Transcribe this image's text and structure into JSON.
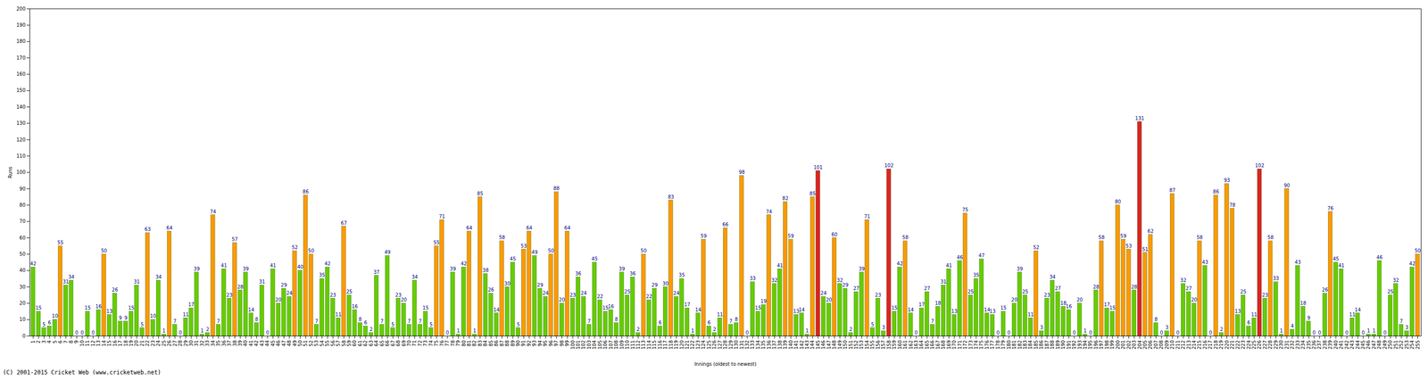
{
  "chart_data": {
    "type": "bar",
    "x_label": "Innings (oldest to newest)",
    "y_label": "Runs",
    "caption": "(C) 2001-2015 Cricket Web (www.cricketweb.net)",
    "categories": [
      "1",
      "2",
      "3",
      "4",
      "5",
      "6",
      "7",
      "8",
      "9",
      "10",
      "11",
      "12",
      "13",
      "14",
      "15",
      "16",
      "17",
      "18",
      "19",
      "20",
      "21",
      "22",
      "23",
      "24",
      "25",
      "26",
      "27",
      "28",
      "29",
      "30",
      "31",
      "32",
      "33",
      "34",
      "35",
      "36",
      "37",
      "38",
      "39",
      "40",
      "41",
      "42",
      "43",
      "44",
      "45",
      "46",
      "47",
      "48",
      "49",
      "50",
      "51",
      "52",
      "53",
      "54",
      "55",
      "56",
      "57",
      "58",
      "59",
      "60",
      "61",
      "62",
      "63",
      "64",
      "65",
      "66",
      "67",
      "68",
      "69",
      "70",
      "71",
      "72",
      "73",
      "74",
      "75",
      "76",
      "77",
      "78",
      "79",
      "80",
      "81",
      "82",
      "83",
      "84",
      "85",
      "86",
      "87",
      "88",
      "89",
      "90",
      "91",
      "92",
      "93",
      "94",
      "95",
      "96",
      "97",
      "98",
      "99",
      "100",
      "101",
      "102",
      "103",
      "104",
      "105",
      "106",
      "107",
      "108",
      "109",
      "110",
      "111",
      "112",
      "113",
      "114",
      "115",
      "116",
      "117",
      "118",
      "119",
      "120",
      "121",
      "122",
      "123",
      "124",
      "125",
      "126",
      "127",
      "128",
      "129",
      "130",
      "131",
      "132",
      "133",
      "134",
      "135",
      "136",
      "137",
      "138",
      "139",
      "140",
      "141",
      "142",
      "143",
      "144",
      "145",
      "146",
      "147",
      "148",
      "149",
      "150",
      "151",
      "152",
      "153",
      "154",
      "155",
      "156",
      "157",
      "158",
      "159",
      "160",
      "161",
      "162",
      "163",
      "164",
      "165",
      "166",
      "167",
      "168",
      "169",
      "170",
      "171",
      "172",
      "173",
      "174",
      "175",
      "176",
      "177",
      "178",
      "179",
      "180",
      "181",
      "182",
      "183",
      "184",
      "185",
      "186",
      "187",
      "188",
      "189",
      "190",
      "191",
      "192",
      "193",
      "194",
      "195",
      "196",
      "197",
      "198",
      "199",
      "200",
      "201",
      "202",
      "203",
      "204",
      "205",
      "206",
      "207",
      "208",
      "209",
      "210",
      "211",
      "212",
      "213",
      "214",
      "215",
      "216",
      "217",
      "218",
      "219",
      "220",
      "221",
      "222",
      "223",
      "224",
      "225",
      "226",
      "227",
      "228",
      "229",
      "230",
      "231",
      "232",
      "233",
      "234",
      "235",
      "236",
      "237",
      "238",
      "239",
      "240",
      "241",
      "242",
      "243",
      "244",
      "245",
      "246",
      "247",
      "248",
      "249",
      "250",
      "251",
      "252",
      "253",
      "254",
      "255"
    ],
    "values": [
      42,
      15,
      5,
      6,
      10,
      55,
      31,
      34,
      0,
      0,
      15,
      0,
      16,
      50,
      13,
      26,
      9,
      9,
      15,
      31,
      5,
      63,
      10,
      34,
      1,
      64,
      7,
      0,
      11,
      17,
      39,
      1,
      2,
      74,
      7,
      41,
      23,
      57,
      28,
      39,
      14,
      8,
      31,
      0,
      41,
      20,
      29,
      24,
      52,
      40,
      86,
      50,
      7,
      35,
      42,
      23,
      11,
      67,
      25,
      16,
      8,
      6,
      2,
      37,
      7,
      49,
      5,
      23,
      20,
      7,
      34,
      7,
      15,
      5,
      55,
      71,
      0,
      39,
      1,
      42,
      64,
      1,
      85,
      38,
      26,
      14,
      58,
      30,
      45,
      5,
      53,
      64,
      49,
      29,
      24,
      50,
      88,
      20,
      64,
      23,
      36,
      24,
      7,
      45,
      22,
      15,
      16,
      8,
      39,
      25,
      36,
      2,
      50,
      22,
      29,
      6,
      30,
      83,
      24,
      35,
      17,
      1,
      14,
      59,
      6,
      2,
      11,
      66,
      7,
      8,
      98,
      0,
      33,
      15,
      19,
      74,
      32,
      41,
      82,
      59,
      13,
      14,
      1,
      85,
      101,
      24,
      20,
      60,
      32,
      29,
      2,
      27,
      39,
      71,
      5,
      23,
      3,
      102,
      15,
      42,
      58,
      14,
      0,
      17,
      27,
      7,
      18,
      31,
      41,
      13,
      46,
      75,
      25,
      35,
      47,
      14,
      13,
      0,
      15,
      0,
      20,
      39,
      25,
      11,
      52,
      3,
      23,
      34,
      27,
      18,
      16,
      0,
      20,
      1,
      0,
      28,
      58,
      17,
      15,
      80,
      59,
      53,
      28,
      131,
      51,
      62,
      8,
      0,
      3,
      87,
      0,
      32,
      27,
      20,
      58,
      43,
      0,
      86,
      2,
      93,
      78,
      13,
      25,
      6,
      11,
      102,
      23,
      58,
      33,
      1,
      90,
      4,
      43,
      18,
      9,
      0,
      0,
      26,
      76,
      45,
      41,
      0,
      11,
      14,
      0,
      1,
      1,
      46,
      0,
      25,
      32,
      7,
      3,
      42,
      50
    ],
    "colors": [
      "#66cc00",
      "#66cc00",
      "#66cc00",
      "#66cc00",
      "#66cc00",
      "#ff9900",
      "#66cc00",
      "#66cc00",
      "#66cc00",
      "#66cc00",
      "#66cc00",
      "#66cc00",
      "#66cc00",
      "#ff9900",
      "#66cc00",
      "#66cc00",
      "#66cc00",
      "#66cc00",
      "#66cc00",
      "#66cc00",
      "#66cc00",
      "#ff9900",
      "#66cc00",
      "#66cc00",
      "#66cc00",
      "#ff9900",
      "#66cc00",
      "#66cc00",
      "#66cc00",
      "#66cc00",
      "#66cc00",
      "#66cc00",
      "#66cc00",
      "#ff9900",
      "#66cc00",
      "#66cc00",
      "#66cc00",
      "#ff9900",
      "#66cc00",
      "#66cc00",
      "#66cc00",
      "#66cc00",
      "#66cc00",
      "#66cc00",
      "#66cc00",
      "#66cc00",
      "#66cc00",
      "#66cc00",
      "#ff9900",
      "#66cc00",
      "#ff9900",
      "#ff9900",
      "#66cc00",
      "#66cc00",
      "#66cc00",
      "#66cc00",
      "#66cc00",
      "#ff9900",
      "#66cc00",
      "#66cc00",
      "#66cc00",
      "#66cc00",
      "#66cc00",
      "#66cc00",
      "#66cc00",
      "#66cc00",
      "#66cc00",
      "#66cc00",
      "#66cc00",
      "#66cc00",
      "#66cc00",
      "#66cc00",
      "#66cc00",
      "#66cc00",
      "#ff9900",
      "#ff9900",
      "#66cc00",
      "#66cc00",
      "#66cc00",
      "#66cc00",
      "#ff9900",
      "#66cc00",
      "#ff9900",
      "#66cc00",
      "#66cc00",
      "#66cc00",
      "#ff9900",
      "#66cc00",
      "#66cc00",
      "#66cc00",
      "#ff9900",
      "#ff9900",
      "#66cc00",
      "#66cc00",
      "#66cc00",
      "#ff9900",
      "#ff9900",
      "#66cc00",
      "#ff9900",
      "#66cc00",
      "#66cc00",
      "#66cc00",
      "#66cc00",
      "#66cc00",
      "#66cc00",
      "#66cc00",
      "#66cc00",
      "#66cc00",
      "#66cc00",
      "#66cc00",
      "#66cc00",
      "#66cc00",
      "#ff9900",
      "#66cc00",
      "#66cc00",
      "#66cc00",
      "#66cc00",
      "#ff9900",
      "#66cc00",
      "#66cc00",
      "#66cc00",
      "#66cc00",
      "#66cc00",
      "#ff9900",
      "#66cc00",
      "#66cc00",
      "#66cc00",
      "#ff9900",
      "#66cc00",
      "#66cc00",
      "#ff9900",
      "#66cc00",
      "#66cc00",
      "#66cc00",
      "#66cc00",
      "#ff9900",
      "#66cc00",
      "#66cc00",
      "#ff9900",
      "#ff9900",
      "#66cc00",
      "#66cc00",
      "#66cc00",
      "#ff9900",
      "#dd2222",
      "#66cc00",
      "#66cc00",
      "#ff9900",
      "#66cc00",
      "#66cc00",
      "#66cc00",
      "#66cc00",
      "#66cc00",
      "#ff9900",
      "#66cc00",
      "#66cc00",
      "#66cc00",
      "#dd2222",
      "#66cc00",
      "#66cc00",
      "#ff9900",
      "#66cc00",
      "#66cc00",
      "#66cc00",
      "#66cc00",
      "#66cc00",
      "#66cc00",
      "#66cc00",
      "#66cc00",
      "#66cc00",
      "#66cc00",
      "#ff9900",
      "#66cc00",
      "#66cc00",
      "#66cc00",
      "#66cc00",
      "#66cc00",
      "#66cc00",
      "#66cc00",
      "#66cc00",
      "#66cc00",
      "#66cc00",
      "#66cc00",
      "#66cc00",
      "#ff9900",
      "#66cc00",
      "#66cc00",
      "#66cc00",
      "#66cc00",
      "#66cc00",
      "#66cc00",
      "#66cc00",
      "#66cc00",
      "#66cc00",
      "#66cc00",
      "#66cc00",
      "#ff9900",
      "#66cc00",
      "#66cc00",
      "#ff9900",
      "#ff9900",
      "#ff9900",
      "#66cc00",
      "#dd2222",
      "#ff9900",
      "#ff9900",
      "#66cc00",
      "#66cc00",
      "#66cc00",
      "#ff9900",
      "#66cc00",
      "#66cc00",
      "#66cc00",
      "#66cc00",
      "#ff9900",
      "#66cc00",
      "#66cc00",
      "#ff9900",
      "#66cc00",
      "#ff9900",
      "#ff9900",
      "#66cc00",
      "#66cc00",
      "#66cc00",
      "#66cc00",
      "#dd2222",
      "#66cc00",
      "#ff9900",
      "#66cc00",
      "#66cc00",
      "#ff9900",
      "#66cc00",
      "#66cc00",
      "#66cc00",
      "#66cc00",
      "#66cc00",
      "#66cc00",
      "#66cc00",
      "#ff9900",
      "#66cc00",
      "#66cc00",
      "#66cc00",
      "#66cc00",
      "#66cc00",
      "#66cc00",
      "#66cc00",
      "#66cc00",
      "#66cc00",
      "#66cc00",
      "#66cc00",
      "#66cc00",
      "#66cc00",
      "#66cc00",
      "#66cc00",
      "#ff9900"
    ],
    "ylim": [
      0,
      200
    ],
    "yticks": [
      0,
      10,
      20,
      30,
      40,
      50,
      60,
      70,
      80,
      90,
      100,
      110,
      120,
      130,
      140,
      150,
      160,
      170,
      180,
      190,
      200
    ],
    "data_labels": true,
    "grid": false
  }
}
